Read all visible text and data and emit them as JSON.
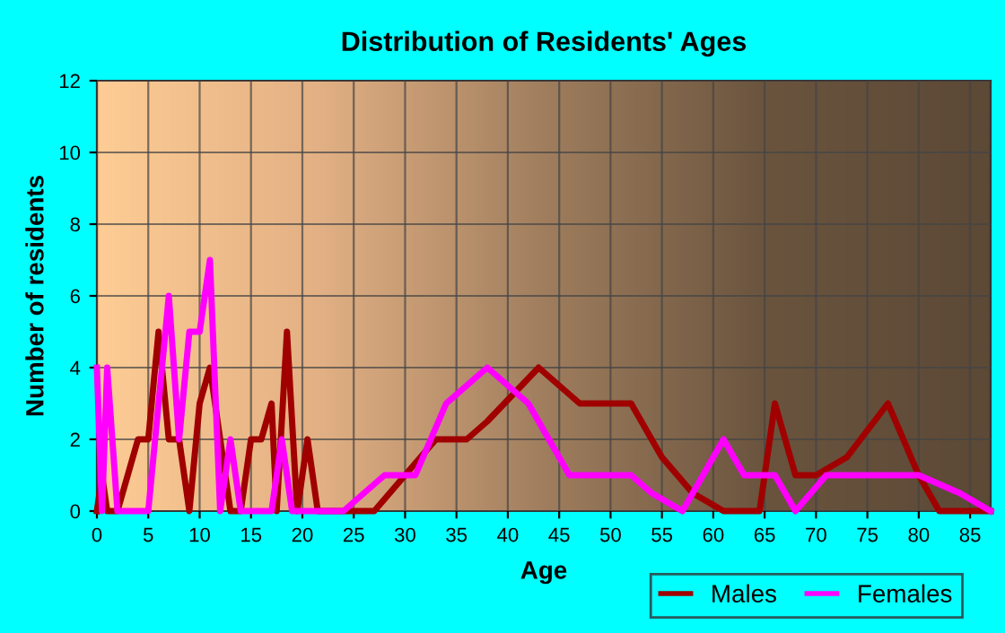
{
  "chart_data": {
    "type": "line",
    "title": "Distribution of Residents' Ages",
    "xlabel": "Age",
    "ylabel": "Number of residents",
    "series": [
      {
        "name": "Males",
        "color": "#a00000",
        "x": [
          0,
          0.5,
          1,
          2,
          3,
          4,
          5,
          6,
          7,
          7.5,
          8,
          9,
          10,
          11,
          12,
          13,
          14,
          15,
          16,
          17,
          17.5,
          18.5,
          19.5,
          20.5,
          21.5,
          27,
          30,
          33,
          34,
          36,
          38,
          43,
          47,
          50,
          52,
          55,
          58,
          61,
          63,
          64.5,
          66,
          68,
          70,
          73,
          77,
          80,
          82,
          87
        ],
        "values": [
          0,
          1,
          0,
          0,
          1,
          2,
          2,
          5,
          2,
          2,
          2,
          0,
          3,
          4,
          2,
          0,
          0,
          2,
          2,
          3,
          0,
          5,
          0,
          2,
          0,
          0,
          1,
          2,
          2,
          2,
          2.5,
          4,
          3,
          3,
          3,
          1.5,
          0.5,
          0,
          0,
          0,
          3,
          1,
          1,
          1.5,
          3,
          1,
          0,
          0
        ]
      },
      {
        "name": "Females",
        "color": "#ff00ff",
        "x": [
          0,
          0.5,
          1,
          2,
          3,
          4,
          5,
          6,
          7,
          8,
          9,
          10,
          11,
          12,
          13,
          14,
          16,
          17,
          18,
          19,
          20,
          21,
          24,
          28,
          31,
          34,
          38,
          42,
          46,
          49,
          52,
          54,
          57,
          61,
          63,
          66,
          68,
          71,
          73,
          76,
          80,
          84,
          87
        ],
        "values": [
          4,
          0,
          4,
          0,
          0,
          0,
          0,
          3,
          6,
          2,
          5,
          5,
          7,
          0,
          2,
          0,
          0,
          0,
          2,
          0,
          0,
          0,
          0,
          1,
          1,
          3,
          4,
          3,
          1,
          1,
          1,
          0.5,
          0,
          2,
          1,
          1,
          0,
          1,
          1,
          1,
          1,
          0.5,
          0
        ]
      }
    ],
    "xlim": [
      0,
      87
    ],
    "ylim": [
      0,
      12
    ],
    "xticks": [
      0,
      5,
      10,
      15,
      20,
      25,
      30,
      35,
      40,
      45,
      50,
      55,
      60,
      65,
      70,
      75,
      80,
      85
    ],
    "yticks": [
      0,
      2,
      4,
      6,
      8,
      10,
      12
    ],
    "grid": true,
    "legend": "bottom right",
    "marker": "none",
    "line_style": "solid"
  }
}
